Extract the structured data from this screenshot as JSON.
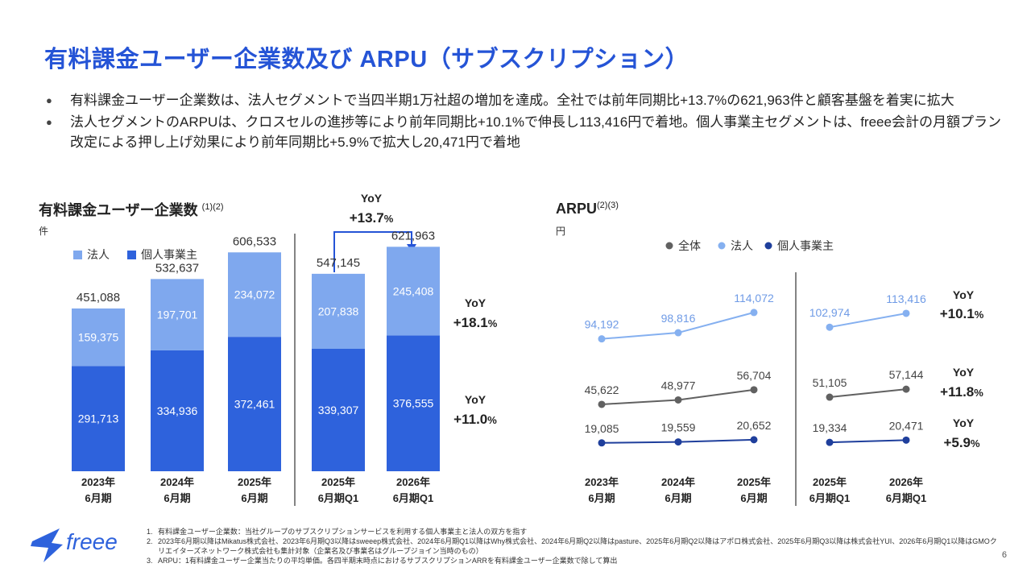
{
  "title": "有料課金ユーザー企業数及び ARPU（サブスクリプション）",
  "bullets": [
    "有料課金ユーザー企業数は、法人セグメントで当四半期1万社超の増加を達成。全社では前年同期比+13.7%の621,963件と顧客基盤を着実に拡大",
    "法人セグメントのARPUは、クロスセルの進捗等により前年同期比+10.1%で伸長し113,416円で着地。個人事業主セグメントは、freee会計の月額プラン改定による押し上げ効果により前年同期比+5.9%で拡大し20,471円で着地"
  ],
  "left": {
    "title": "有料課金ユーザー企業数",
    "sup": "(1)(2)",
    "unit": "件",
    "legend": [
      "法人",
      "個人事業主"
    ],
    "yoy_total": {
      "label": "YoY",
      "value": "+13.7",
      "pct": "%"
    },
    "yoy_corp": {
      "label": "YoY",
      "value": "+18.1",
      "pct": "%"
    },
    "yoy_indiv": {
      "label": "YoY",
      "value": "+11.0",
      "pct": "%"
    }
  },
  "right": {
    "title": "ARPU",
    "sup": "(2)(3)",
    "unit": "円",
    "legend": [
      "全体",
      "法人",
      "個人事業主"
    ],
    "yoy_corp": {
      "label": "YoY",
      "value": "+10.1",
      "pct": "%"
    },
    "yoy_total": {
      "label": "YoY",
      "value": "+11.8",
      "pct": "%"
    },
    "yoy_indiv": {
      "label": "YoY",
      "value": "+5.9",
      "pct": "%"
    }
  },
  "chart_data": [
    {
      "type": "bar",
      "stacked": true,
      "title": "有料課金ユーザー企業数",
      "categories": [
        [
          "2023年",
          "6月期"
        ],
        [
          "2024年",
          "6月期"
        ],
        [
          "2025年",
          "6月期"
        ],
        [
          "2025年",
          "6月期Q1"
        ],
        [
          "2026年",
          "6月期Q1"
        ]
      ],
      "series": [
        {
          "name": "個人事業主",
          "values": [
            291713,
            334936,
            372461,
            339307,
            376555
          ],
          "color": "#2e62dc"
        },
        {
          "name": "法人",
          "values": [
            159375,
            197701,
            234072,
            207838,
            245408
          ],
          "color": "#7fa8ee"
        }
      ],
      "totals": [
        451088,
        532637,
        606533,
        547145,
        621963
      ],
      "labels": {
        "個人事業主": [
          "291,713",
          "334,936",
          "372,461",
          "339,307",
          "376,555"
        ],
        "法人": [
          "159,375",
          "197,701",
          "234,072",
          "207,838",
          "245,408"
        ],
        "totals": [
          "451,088",
          "532,637",
          "606,533",
          "547,145",
          "621,963"
        ]
      },
      "ylim": [
        0,
        700000
      ]
    },
    {
      "type": "line",
      "title": "ARPU",
      "groups": [
        {
          "categories": [
            [
              "2023年",
              "6月期"
            ],
            [
              "2024年",
              "6月期"
            ],
            [
              "2025年",
              "6月期"
            ]
          ]
        },
        {
          "categories": [
            [
              "2025年",
              "6月期Q1"
            ],
            [
              "2026年",
              "6月期Q1"
            ]
          ]
        }
      ],
      "series": [
        {
          "name": "法人",
          "color": "#85b0f0",
          "values": [
            [
              94192,
              98816,
              114072
            ],
            [
              102974,
              113416
            ]
          ],
          "labels": [
            [
              "94,192",
              "98,816",
              "114,072"
            ],
            [
              "102,974",
              "113,416"
            ]
          ]
        },
        {
          "name": "全体",
          "color": "#616161",
          "values": [
            [
              45622,
              48977,
              56704
            ],
            [
              51105,
              57144
            ]
          ],
          "labels": [
            [
              "45,622",
              "48,977",
              "56,704"
            ],
            [
              "51,105",
              "57,144"
            ]
          ]
        },
        {
          "name": "個人事業主",
          "color": "#1f3f9c",
          "values": [
            [
              19085,
              19559,
              20652
            ],
            [
              19334,
              20471
            ]
          ],
          "labels": [
            [
              "19,085",
              "19,559",
              "20,652"
            ],
            [
              "19,334",
              "20,471"
            ]
          ]
        }
      ]
    }
  ],
  "footnotes": [
    {
      "n": "1.",
      "text": "有料課金ユーザー企業数：当社グループのサブスクリプションサービスを利用する個人事業主と法人の双方を指す"
    },
    {
      "n": "2.",
      "text": "2023年6月期以降はMikatus株式会社、2023年6月期Q3以降はsweeep株式会社、2024年6月期Q1以降はWhy株式会社、2024年6月期Q2以降はpasture、2025年6月期Q2以降はアポロ株式会社、2025年6月期Q3以降は株式会社YUI、2026年6月期Q1以降はGMOクリエイターズネットワーク株式会社も集計対象（企業名及び事業名はグループジョイン当時のもの）"
    },
    {
      "n": "3.",
      "text": "ARPU：1有料課金ユーザー企業当たりの平均単価。各四半期末時点におけるサブスクリプションARRを有料課金ユーザー企業数で除して算出"
    }
  ],
  "logo_text": "freee",
  "page_number": "6"
}
